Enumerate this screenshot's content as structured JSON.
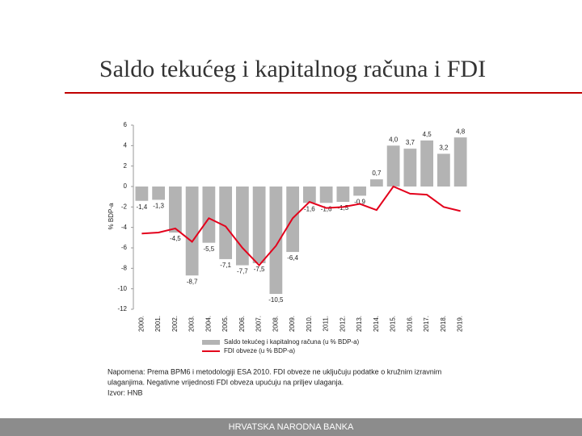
{
  "title": "Saldo tekućeg i kapitalnog računa i FDI",
  "chart_data": {
    "type": "bar-line",
    "y_label": "% BDP-a",
    "categories": [
      "2000.",
      "2001.",
      "2002.",
      "2003.",
      "2004.",
      "2005.",
      "2006.",
      "2007.",
      "2008.",
      "2009.",
      "2010.",
      "2011.",
      "2012.",
      "2013.",
      "2014.",
      "2015.",
      "2016.",
      "2017.",
      "2018.",
      "2019."
    ],
    "series": [
      {
        "name": "Saldo tekućeg i kapitalnog računa (u % BDP-a)",
        "color": "#b3b3b3",
        "kind": "bar",
        "values": [
          -1.4,
          -1.3,
          -4.5,
          -8.7,
          -5.5,
          -7.1,
          -7.7,
          -7.5,
          -10.5,
          -6.4,
          -1.6,
          -1.6,
          -1.5,
          -0.9,
          0.7,
          4.0,
          3.7,
          4.5,
          3.2,
          4.8
        ],
        "value_labels": [
          "-1,4",
          "-1,3",
          "-4,5",
          "-8,7",
          "-5,5",
          "-7,1",
          "-7,7",
          "-7,5",
          "-10,5",
          "-6,4",
          "-1,6",
          "-1,6",
          "-1,5",
          "-0,9",
          "0,7",
          "4,0",
          "3,7",
          "4,5",
          "3,2",
          "4,8"
        ]
      },
      {
        "name": "FDI obveze (u % BDP-a)",
        "color": "#e3001b",
        "kind": "line",
        "values": [
          -4.6,
          -4.5,
          -4.1,
          -5.4,
          -3.1,
          -3.9,
          -6.0,
          -7.7,
          -5.8,
          -3.1,
          -1.5,
          -2.1,
          -2.0,
          -1.7,
          -2.3,
          0.0,
          -0.7,
          -0.8,
          -2.0,
          -2.4
        ]
      }
    ],
    "ylim": [
      -12,
      6
    ],
    "yticks": [
      -12,
      -10,
      -8,
      -6,
      -4,
      -2,
      0,
      2,
      4,
      6
    ]
  },
  "note": [
    "Napomena: Prema BPM6 i metodologiji ESA 2010. FDI obveze ne uključuju podatke o kružnim izravnim",
    "ulaganjima. Negativne vrijednosti FDI obveza upućuju na priljev ulaganja.",
    "Izvor: HNB"
  ],
  "footer": "HRVATSKA NARODNA BANKA"
}
